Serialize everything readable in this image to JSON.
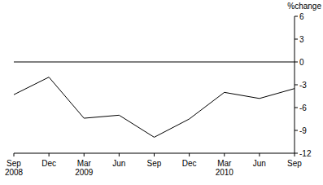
{
  "chart_data": {
    "type": "line",
    "y_label": "%change",
    "categories": [
      "Sep 2008",
      "Dec",
      "Mar 2009",
      "Jun",
      "Sep",
      "Dec",
      "Mar 2010",
      "Jun",
      "Sep"
    ],
    "values": [
      -4.3,
      -2.0,
      -7.4,
      -7.0,
      -9.9,
      -7.5,
      -4.0,
      -4.8,
      -3.5
    ],
    "color": "#000000",
    "ylim": [
      -12,
      6
    ],
    "yticks": [
      -12,
      -9,
      -6,
      -3,
      0,
      3,
      6
    ],
    "grid": false
  }
}
